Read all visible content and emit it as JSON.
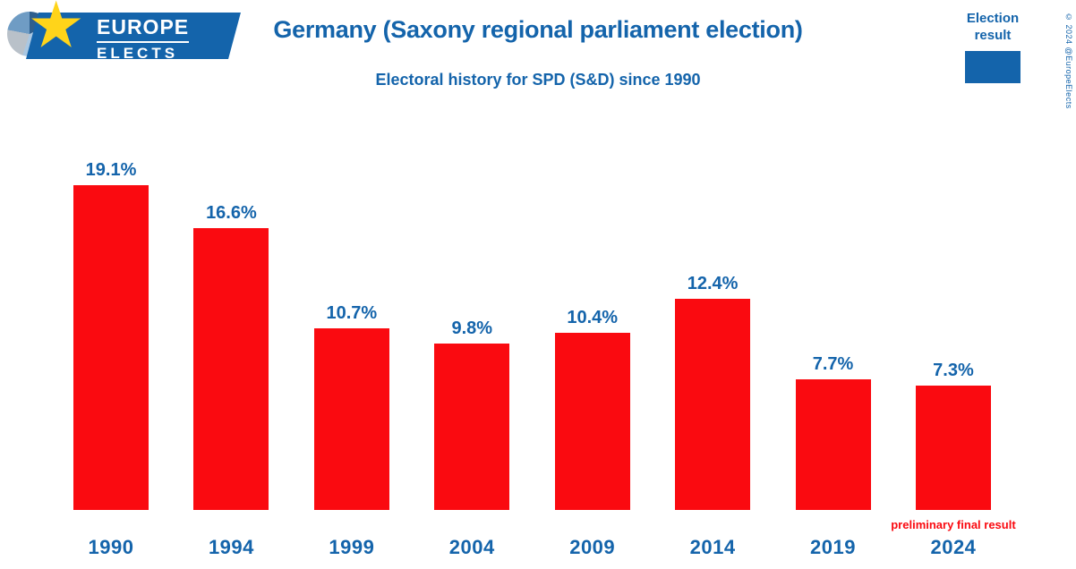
{
  "header": {
    "logo": {
      "line1": "EUROPE",
      "line2": "ELECTS"
    },
    "title": "Germany (Saxony regional parliament election)",
    "subtitle": "Electoral history for SPD (S&D) since 1990",
    "legend": {
      "label": "Election result"
    },
    "copyright": "© 2024 @EuropeElects"
  },
  "colors": {
    "bar": "#fa0a10",
    "blue": "#1464ab",
    "star": "#ffd41a",
    "legend_swatch": "#1464ab"
  },
  "chart_data": {
    "type": "bar",
    "title": "Germany (Saxony regional parliament election)",
    "subtitle": "Electoral history for SPD (S&D) since 1990",
    "series_name": "Election result",
    "categories": [
      "1990",
      "1994",
      "1999",
      "2004",
      "2009",
      "2014",
      "2019",
      "2024"
    ],
    "values": [
      19.1,
      16.6,
      10.7,
      9.8,
      10.4,
      12.4,
      7.7,
      7.3
    ],
    "labels": [
      "19.1%",
      "16.6%",
      "10.7%",
      "9.8%",
      "10.4%",
      "12.4%",
      "7.7%",
      "7.3%"
    ],
    "xlabel": "",
    "ylabel": "",
    "ylim": [
      0,
      21
    ],
    "grid": false,
    "legend_position": "top-right",
    "note": "preliminary final result",
    "note_category": "2024"
  }
}
